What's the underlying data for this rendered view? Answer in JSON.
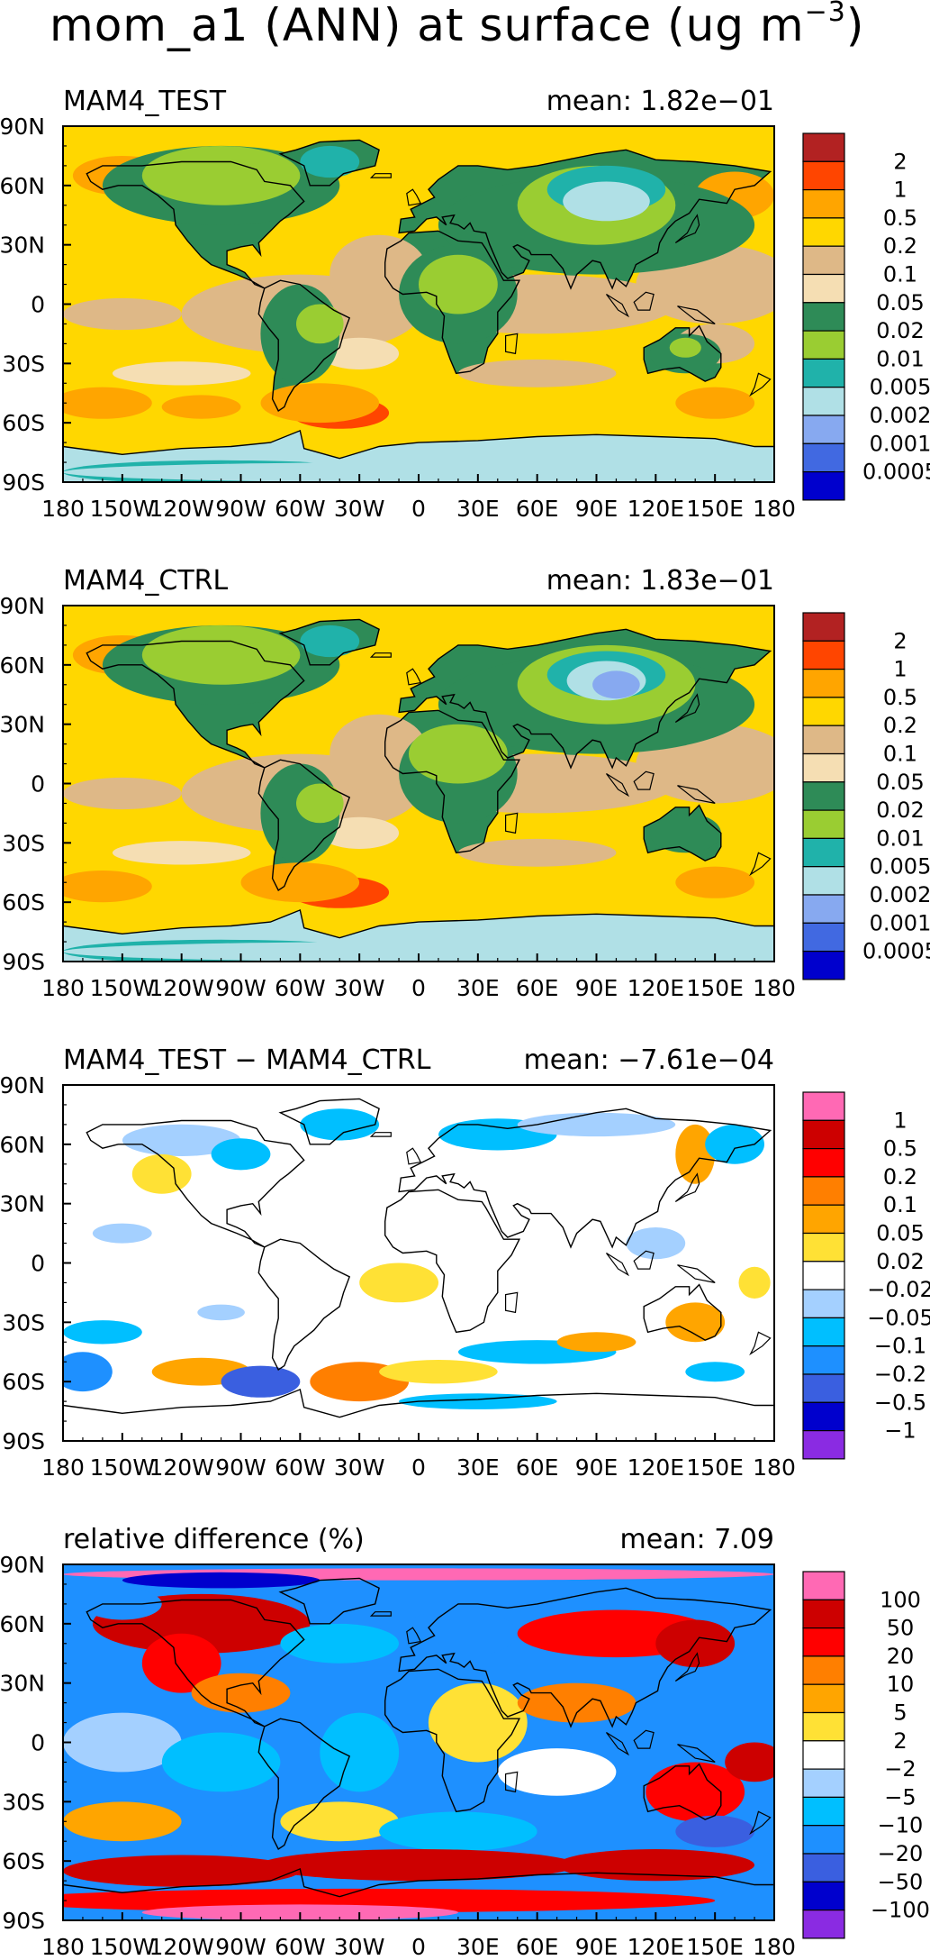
{
  "figure": {
    "title": "mom_a1 (ANN) at surface (ug m",
    "title_exponent": "−3",
    "title_close": ")"
  },
  "lon_ticks": [
    "180",
    "150W",
    "120W",
    "90W",
    "60W",
    "30W",
    "0",
    "30E",
    "60E",
    "90E",
    "120E",
    "150E",
    "180"
  ],
  "lat_ticks": [
    "90N",
    "60N",
    "30N",
    "0",
    "30S",
    "60S",
    "90S"
  ],
  "chart_data": [
    {
      "type": "heatmap",
      "key": "test",
      "title": "MAM4_TEST",
      "mean_label": "mean:  1.82e−01",
      "mean": 0.182,
      "units": "ug m^-3",
      "xlim": [
        -180,
        180
      ],
      "ylim": [
        -90,
        90
      ],
      "colorbar_levels": [
        "2",
        "1",
        "0.5",
        "0.2",
        "0.1",
        "0.05",
        "0.02",
        "0.01",
        "0.005",
        "0.002",
        "0.001",
        "0.0005"
      ],
      "colorbar_colors": [
        "#b22222",
        "#ff4500",
        "#ffa500",
        "#ffd700",
        "#deb887",
        "#f5deb3",
        "#2e8b57",
        "#9acd32",
        "#20b2aa",
        "#b0e0e6",
        "#87a9f0",
        "#4169e1",
        "#0000cd"
      ]
    },
    {
      "type": "heatmap",
      "key": "ctrl",
      "title": "MAM4_CTRL",
      "mean_label": "mean:  1.83e−01",
      "mean": 0.183,
      "units": "ug m^-3",
      "xlim": [
        -180,
        180
      ],
      "ylim": [
        -90,
        90
      ],
      "colorbar_levels": [
        "2",
        "1",
        "0.5",
        "0.2",
        "0.1",
        "0.05",
        "0.02",
        "0.01",
        "0.005",
        "0.002",
        "0.001",
        "0.0005"
      ],
      "colorbar_colors": [
        "#b22222",
        "#ff4500",
        "#ffa500",
        "#ffd700",
        "#deb887",
        "#f5deb3",
        "#2e8b57",
        "#9acd32",
        "#20b2aa",
        "#b0e0e6",
        "#87a9f0",
        "#4169e1",
        "#0000cd"
      ]
    },
    {
      "type": "heatmap",
      "key": "diff",
      "title": "MAM4_TEST − MAM4_CTRL",
      "mean_label": "mean:  −7.61e−04",
      "mean": -0.000761,
      "xlim": [
        -180,
        180
      ],
      "ylim": [
        -90,
        90
      ],
      "colorbar_levels": [
        "1",
        "0.5",
        "0.2",
        "0.1",
        "0.05",
        "0.02",
        "−0.02",
        "−0.05",
        "−0.1",
        "−0.2",
        "−0.5",
        "−1"
      ],
      "colorbar_colors": [
        "#ff69b4",
        "#cd0000",
        "#ff0000",
        "#ff7f00",
        "#ffa500",
        "#ffe135",
        "#ffffff",
        "#a4d0ff",
        "#00bfff",
        "#1e90ff",
        "#3a5fe0",
        "#0000cd",
        "#8a2be2"
      ]
    },
    {
      "type": "heatmap",
      "key": "rel",
      "title": "relative difference (%)",
      "mean_label": "mean:   7.09",
      "mean": 7.09,
      "units": "%",
      "xlim": [
        -180,
        180
      ],
      "ylim": [
        -90,
        90
      ],
      "colorbar_levels": [
        "100",
        "50",
        "20",
        "10",
        "5",
        "2",
        "−2",
        "−5",
        "−10",
        "−20",
        "−50",
        "−100"
      ],
      "colorbar_colors": [
        "#ff69b4",
        "#cd0000",
        "#ff0000",
        "#ff7f00",
        "#ffa500",
        "#ffe135",
        "#ffffff",
        "#a4d0ff",
        "#00bfff",
        "#1e90ff",
        "#3a5fe0",
        "#0000cd",
        "#8a2be2"
      ]
    }
  ]
}
